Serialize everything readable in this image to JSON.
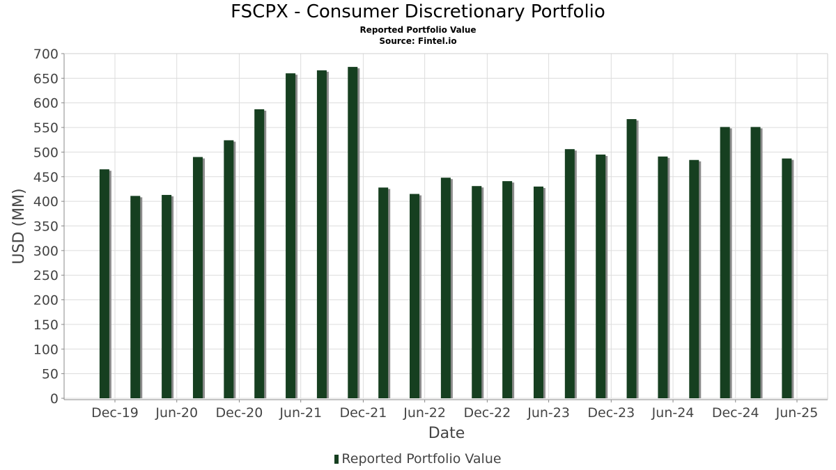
{
  "chart_data": {
    "type": "bar",
    "title": "FSCPX - Consumer Discretionary Portfolio",
    "subtitle": "Reported Portfolio Value",
    "source": "Source: Fintel.io",
    "xlabel": "Date",
    "ylabel": "USD (MM)",
    "ylim": [
      0,
      700
    ],
    "yticks": [
      0,
      50,
      100,
      150,
      200,
      250,
      300,
      350,
      400,
      450,
      500,
      550,
      600,
      650,
      700
    ],
    "xtick_labels": [
      "Dec-19",
      "Jun-20",
      "Dec-20",
      "Jun-21",
      "Dec-21",
      "Jun-22",
      "Dec-22",
      "Jun-23",
      "Dec-23",
      "Jun-24",
      "Dec-24",
      "Jun-25"
    ],
    "grid": true,
    "legend_position": "bottom",
    "series": [
      {
        "name": "Reported Portfolio Value",
        "color": "#163f20",
        "dates": [
          "2019-11-30",
          "2020-02-29",
          "2020-05-31",
          "2020-08-31",
          "2020-11-30",
          "2021-02-28",
          "2021-05-31",
          "2021-08-31",
          "2021-11-30",
          "2022-02-28",
          "2022-05-31",
          "2022-08-31",
          "2022-11-30",
          "2023-02-28",
          "2023-05-31",
          "2023-08-31",
          "2023-11-30",
          "2024-02-29",
          "2024-05-31",
          "2024-08-31",
          "2024-11-30",
          "2025-02-28",
          "2025-05-31"
        ],
        "values": [
          465,
          411,
          413,
          490,
          524,
          587,
          660,
          666,
          673,
          428,
          415,
          448,
          431,
          441,
          430,
          506,
          495,
          567,
          491,
          484,
          551,
          551,
          487
        ]
      }
    ]
  }
}
